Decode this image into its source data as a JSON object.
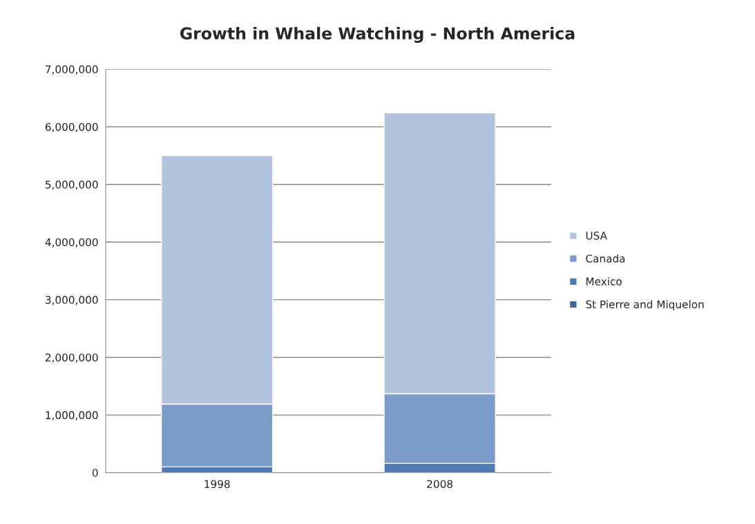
{
  "chart_data": {
    "type": "bar",
    "title": "Growth in Whale Watching - North America",
    "categories": [
      "1998",
      "2008"
    ],
    "stacked": true,
    "series": [
      {
        "name": "St Pierre and Miquelon",
        "color": "#3e6595",
        "values": [
          0,
          0
        ]
      },
      {
        "name": "Mexico",
        "color": "#4f79b0",
        "values": [
          100000,
          160000
        ]
      },
      {
        "name": "Canada",
        "color": "#7d9bc9",
        "values": [
          1090000,
          1210000
        ]
      },
      {
        "name": "USA",
        "color": "#b3c3de",
        "values": [
          4310000,
          4870000
        ]
      }
    ],
    "ylim": [
      0,
      7000000
    ],
    "yticks": [
      {
        "value": 0,
        "label": "0"
      },
      {
        "value": 1000000,
        "label": "1,000,000"
      },
      {
        "value": 2000000,
        "label": "2,000,000"
      },
      {
        "value": 3000000,
        "label": "3,000,000"
      },
      {
        "value": 4000000,
        "label": "4,000,000"
      },
      {
        "value": 5000000,
        "label": "5,000,000"
      },
      {
        "value": 6000000,
        "label": "6,000,000"
      },
      {
        "value": 7000000,
        "label": "7,000,000"
      }
    ],
    "grid": "y",
    "legend": "right"
  }
}
